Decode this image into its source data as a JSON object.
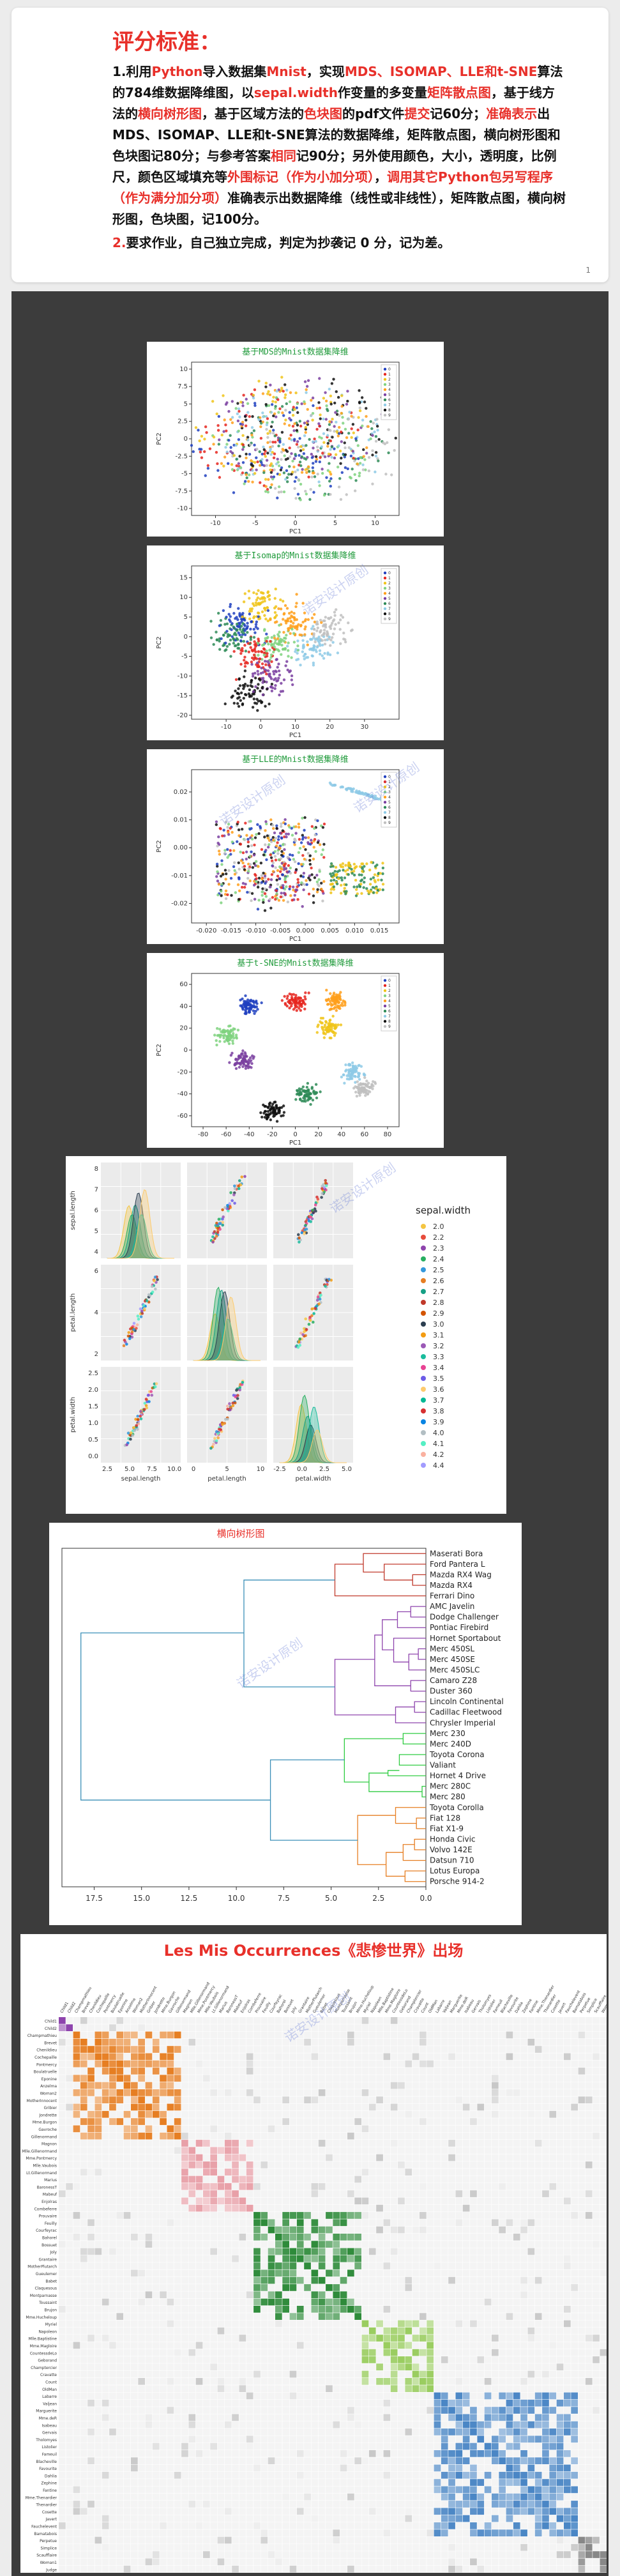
{
  "header": {
    "title": "评分标准：",
    "items": [
      {
        "number": "1.",
        "segments": [
          {
            "t": "利用",
            "c": "b"
          },
          {
            "t": "Python",
            "c": "r"
          },
          {
            "t": "导入数据集",
            "c": "b"
          },
          {
            "t": "Mnist",
            "c": "r"
          },
          {
            "t": "，实现",
            "c": "b"
          },
          {
            "t": "MDS、ISOMAP、LLE和t-SNE",
            "c": "r"
          },
          {
            "t": "算法的784维数据降维图，以",
            "c": "b"
          },
          {
            "t": "sepal.width",
            "c": "r"
          },
          {
            "t": "作变量的多变量",
            "c": "b"
          },
          {
            "t": "矩阵散点图",
            "c": "r"
          },
          {
            "t": "，基于线方法的",
            "c": "b"
          },
          {
            "t": "横向树形图",
            "c": "r"
          },
          {
            "t": "，基于区域方法的",
            "c": "b"
          },
          {
            "t": "色块图",
            "c": "r"
          },
          {
            "t": "的pdf文件",
            "c": "b"
          },
          {
            "t": "提交",
            "c": "r"
          },
          {
            "t": "记60分；",
            "c": "b"
          },
          {
            "t": "准确表示",
            "c": "r"
          },
          {
            "t": "出MDS、ISOMAP、LLE和t-SNE算法的数据降维，矩阵散点图，横向树形图和色块图记80分；与参考答案",
            "c": "b"
          },
          {
            "t": "相同",
            "c": "r"
          },
          {
            "t": "记90分；另外使用颜色，大小，透明度，比例尺，颜色区域填充等",
            "c": "b"
          },
          {
            "t": "外围标记（作为小加分项）",
            "c": "r"
          },
          {
            "t": "，",
            "c": "b"
          },
          {
            "t": "调用其它Python包另写程序（作为满分加分项）",
            "c": "r"
          },
          {
            "t": "准确表示出数据降维（线性或非线性），矩阵散点图，横向树形图，色块图，记100分。",
            "c": "b"
          }
        ]
      },
      {
        "number": "2.",
        "segments": [
          {
            "t": "要求作业，自己独立完成，判定为抄袭记 0 分，记为差。",
            "c": "b"
          }
        ]
      }
    ],
    "page_number": "1"
  },
  "colors": {
    "accent_red": "#e8302a",
    "plot_title_green": "#1f9a3a",
    "digit_palette": [
      "#1f3fbf",
      "#e6261f",
      "#f0c419",
      "#7fd27f",
      "#ff9f1a",
      "#7a3fa0",
      "#2e8b57",
      "#8ecae6",
      "#111111",
      "#c0c0c0"
    ]
  },
  "watermark": "诺安设计原创",
  "chart_data": [
    {
      "type": "scatter",
      "title": "基于MDS的Mnist数据集降维",
      "xlabel": "PC1",
      "ylabel": "PC2",
      "xticks": [
        -10,
        -5,
        0,
        5,
        10
      ],
      "yticks": [
        -10.0,
        -7.5,
        -5.0,
        -2.5,
        0.0,
        2.5,
        5.0,
        7.5,
        10.0
      ],
      "xlim": [
        -13,
        13
      ],
      "ylim": [
        -11,
        11
      ],
      "legend": [
        "0",
        "1",
        "2",
        "3",
        "4",
        "5",
        "6",
        "7",
        "8",
        "9"
      ],
      "legend_position": "right"
    },
    {
      "type": "scatter",
      "title": "基于Isomap的Mnist数据集降维",
      "xlabel": "PC1",
      "ylabel": "PC2",
      "xticks": [
        -10,
        0,
        10,
        20,
        30
      ],
      "yticks": [
        -20,
        -15,
        -10,
        -5,
        0,
        5,
        10,
        15
      ],
      "xlim": [
        -20,
        40
      ],
      "ylim": [
        -21,
        18
      ],
      "legend": [
        "0",
        "1",
        "2",
        "3",
        "4",
        "5",
        "6",
        "7",
        "8",
        "9"
      ],
      "legend_position": "right"
    },
    {
      "type": "scatter",
      "title": "基于LLE的Mnist数据集降维",
      "xlabel": "PC1",
      "ylabel": "PC2",
      "xticks": [
        -0.02,
        -0.015,
        -0.01,
        -0.005,
        0.0,
        0.005,
        0.01,
        0.015
      ],
      "xtick_labels": [
        "-0.020",
        "-0.015",
        "-0.010",
        "-0.005",
        "0.000",
        "0.005",
        "0.010",
        "0.015"
      ],
      "yticks": [
        -0.02,
        -0.01,
        0.0,
        0.01,
        0.02
      ],
      "ytick_labels": [
        "-0.02",
        "-0.01",
        "0.00",
        "0.01",
        "0.02"
      ],
      "xlim": [
        -0.023,
        0.019
      ],
      "ylim": [
        -0.027,
        0.028
      ],
      "legend": [
        "0",
        "1",
        "2",
        "3",
        "4",
        "5",
        "6",
        "7",
        "8",
        "9"
      ],
      "legend_position": "right"
    },
    {
      "type": "scatter",
      "title": "基于t-SNE的Mnist数据集降维",
      "xlabel": "PC1",
      "ylabel": "PC2",
      "xticks": [
        -80,
        -60,
        -40,
        -20,
        0,
        20,
        40,
        60,
        80
      ],
      "yticks": [
        -60,
        -40,
        -20,
        0,
        20,
        40,
        60
      ],
      "xlim": [
        -90,
        90
      ],
      "ylim": [
        -70,
        70
      ],
      "legend": [
        "0",
        "1",
        "2",
        "3",
        "4",
        "5",
        "6",
        "7",
        "8",
        "9"
      ],
      "legend_position": "right"
    },
    {
      "type": "scatter",
      "title": "",
      "variables": [
        "sepal.length",
        "petal.length",
        "petal.width"
      ],
      "hue": "sepal.width",
      "hue_values": [
        "2.0",
        "2.2",
        "2.3",
        "2.4",
        "2.5",
        "2.6",
        "2.7",
        "2.8",
        "2.9",
        "3.0",
        "3.1",
        "3.2",
        "3.3",
        "3.4",
        "3.5",
        "3.6",
        "3.7",
        "3.8",
        "3.9",
        "4.0",
        "4.1",
        "4.2",
        "4.4"
      ],
      "ylabels": [
        "sepal.length",
        "petal.length",
        "petal.width"
      ],
      "xlabels": [
        "sepal.length",
        "petal.length",
        "petal.width"
      ],
      "row_yticks": [
        [
          "4",
          "5",
          "6",
          "7",
          "8"
        ],
        [
          "2",
          "4",
          "6"
        ],
        [
          "0.0",
          "0.5",
          "1.0",
          "1.5",
          "2.0",
          "2.5"
        ]
      ],
      "col_xticks": [
        [
          "2.5",
          "5.0",
          "7.5",
          "10.0"
        ],
        [
          "0",
          "5",
          "10"
        ],
        [
          "-2.5",
          "0.0",
          "2.5",
          "5.0"
        ]
      ],
      "legend_position": "right"
    },
    {
      "type": "dendrogram",
      "title": "横向树形图",
      "orientation": "left",
      "leaves": [
        "Maserati Bora",
        "Ford Pantera L",
        "Mazda RX4 Wag",
        "Mazda RX4",
        "Ferrari Dino",
        "AMC Javelin",
        "Dodge Challenger",
        "Pontiac Firebird",
        "Hornet Sportabout",
        "Merc 450SL",
        "Merc 450SE",
        "Merc 450SLC",
        "Camaro Z28",
        "Duster 360",
        "Lincoln Continental",
        "Cadillac Fleetwood",
        "Chrysler Imperial",
        "Merc 230",
        "Merc 240D",
        "Toyota Corona",
        "Valiant",
        "Hornet 4 Drive",
        "Merc 280C",
        "Merc 280",
        "Toyota Corolla",
        "Fiat 128",
        "Fiat X1-9",
        "Honda Civic",
        "Volvo 142E",
        "Datsun 710",
        "Lotus Europa",
        "Porsche 914-2"
      ],
      "xticks": [
        17.5,
        15.0,
        12.5,
        10.0,
        7.5,
        5.0,
        2.5,
        0.0
      ],
      "xtick_labels": [
        "17.5",
        "15.0",
        "12.5",
        "10.0",
        "7.5",
        "5.0",
        "2.5",
        "0.0"
      ],
      "xlim": [
        19.2,
        0
      ]
    },
    {
      "type": "heatmap",
      "title": "Les Mis Occurrences《悲惨世界》出场",
      "row_labels": [
        "Child1",
        "Child2",
        "Champmathieu",
        "Brevet",
        "Chenildieu",
        "Cochepaille",
        "Pontmercy",
        "Boulatruelle",
        "Eponine",
        "Anzelma",
        "Woman2",
        "MotherInnocent",
        "Gribier",
        "Jondrette",
        "Mme.Burgon",
        "Gavroche",
        "Gillenormand",
        "Magnon",
        "Mlle.Gillenormand",
        "Mme.Pontmercy",
        "Mlle.Vaubois",
        "Lt.Gillenormand",
        "Marius",
        "BaronessT",
        "Mabeuf",
        "Enjolras",
        "Combeferre",
        "Prouvaire",
        "Feuilly",
        "Courfeyrac",
        "Bahorel",
        "Bossuet",
        "Joly",
        "Grantaire",
        "MotherPlutarch",
        "Gueulemer",
        "Babet",
        "Claquesous",
        "Montparnasse",
        "Toussaint",
        "Brujon",
        "Mme.Hucheloup",
        "Myriel",
        "Napoleon",
        "Mlle.Baptistine",
        "Mme.Magloire",
        "CountessdeLo",
        "Geborand",
        "Champtercier",
        "Cravatte",
        "Count",
        "OldMan",
        "Labarre",
        "Valjean",
        "Marguerite",
        "Mme.deR",
        "Isabeau",
        "Gervais",
        "Tholomyes",
        "Listolier",
        "Fameuil",
        "Blacheville",
        "Favourite",
        "Dahlia",
        "Zephine",
        "Fantine",
        "Mme.Thenardier",
        "Thenardier",
        "Cosette",
        "Javert",
        "Fauchelevent",
        "Bamatabois",
        "Perpetue",
        "Simplice",
        "Scaufflaire",
        "Woman1",
        "Judge"
      ],
      "group_colors": [
        "#8e44ad",
        "#e67e22",
        "#e8a0a8",
        "#2e8b3a",
        "#9acd60",
        "#4a86c5",
        "#888888"
      ]
    }
  ]
}
